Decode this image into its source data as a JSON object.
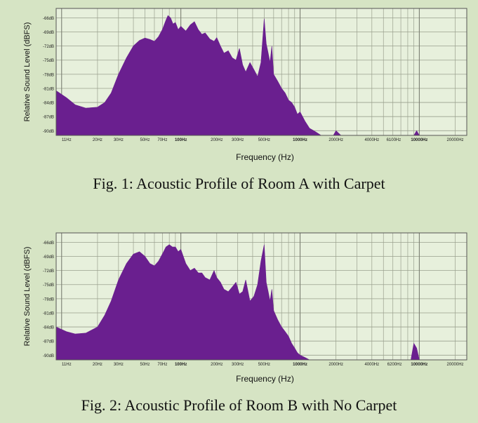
{
  "colors": {
    "background": "#d6e4c4",
    "plot_area": "#e7f0dc",
    "fill": "#6a1f8f",
    "grid": "#9aa08e",
    "gridline_strong": "#7b7f72"
  },
  "figures": [
    {
      "caption": "Fig. 1: Acoustic Profile of Room A with Carpet"
    },
    {
      "caption": "Fig. 2: Acoustic Profile of Room B with No Carpet"
    }
  ],
  "chart_data": [
    {
      "type": "area",
      "xlabel": "Frequency (Hz)",
      "ylabel": "Relative Sound Level (dBFS)",
      "xscale": "log",
      "xlim": [
        9,
        25000
      ],
      "ylim": [
        -91,
        -64
      ],
      "grid": true,
      "y_ticks": [
        {
          "value": -66,
          "label": "-66dB"
        },
        {
          "value": -69,
          "label": "-69dB"
        },
        {
          "value": -72,
          "label": "-72dB"
        },
        {
          "value": -75,
          "label": "-75dB"
        },
        {
          "value": -78,
          "label": "-78dB"
        },
        {
          "value": -81,
          "label": "-81dB"
        },
        {
          "value": -84,
          "label": "-84dB"
        },
        {
          "value": -87,
          "label": "-87dB"
        },
        {
          "value": -90,
          "label": "-90dB"
        }
      ],
      "x_ticks": [
        {
          "value": 11,
          "label": "11Hz"
        },
        {
          "value": 20,
          "label": "20Hz"
        },
        {
          "value": 30,
          "label": "30Hz"
        },
        {
          "value": 50,
          "label": "50Hz"
        },
        {
          "value": 70,
          "label": "70Hz"
        },
        {
          "value": 100,
          "label": "100Hz"
        },
        {
          "value": 200,
          "label": "200Hz"
        },
        {
          "value": 300,
          "label": "300Hz"
        },
        {
          "value": 500,
          "label": "500Hz"
        },
        {
          "value": 1000,
          "label": "1000Hz"
        },
        {
          "value": 2000,
          "label": "2000Hz"
        },
        {
          "value": 4000,
          "label": "4000Hz"
        },
        {
          "value": 6100,
          "label": "6100Hz"
        },
        {
          "value": 10000,
          "label": "10000Hz"
        },
        {
          "value": 20000,
          "label": "20000Hz"
        }
      ],
      "x": [
        9,
        11,
        13,
        16,
        20,
        23,
        26,
        30,
        35,
        40,
        45,
        50,
        55,
        60,
        65,
        70,
        75,
        78,
        82,
        86,
        90,
        95,
        100,
        110,
        120,
        130,
        140,
        150,
        160,
        175,
        190,
        200,
        215,
        230,
        250,
        270,
        290,
        310,
        330,
        350,
        380,
        410,
        440,
        470,
        500,
        520,
        540,
        560,
        580,
        600,
        650,
        700,
        750,
        800,
        850,
        900,
        950,
        1000,
        1100,
        1200,
        1300,
        1400,
        1500,
        1700,
        1900,
        2000,
        2200,
        2500,
        3000,
        4000,
        6000,
        9000,
        9500,
        10000,
        10500,
        15000,
        20000,
        25000
      ],
      "y": [
        -81.5,
        -83,
        -84.5,
        -85.2,
        -85.0,
        -84.0,
        -82.0,
        -78.0,
        -74.5,
        -72.0,
        -70.8,
        -70.3,
        -70.6,
        -71.0,
        -70.0,
        -68.5,
        -66.5,
        -65.5,
        -66.0,
        -67.3,
        -67.0,
        -68.5,
        -67.8,
        -68.8,
        -67.5,
        -66.8,
        -68.5,
        -69.5,
        -69.2,
        -70.5,
        -71.0,
        -70.2,
        -72.0,
        -73.5,
        -73.0,
        -74.5,
        -75.0,
        -72.5,
        -76.0,
        -77.5,
        -75.5,
        -77.0,
        -78.5,
        -75.5,
        -66.2,
        -71.5,
        -73.5,
        -75.5,
        -72.0,
        -78.0,
        -79.5,
        -81.0,
        -82.0,
        -83.5,
        -84.0,
        -85.0,
        -86.5,
        -86.0,
        -88.0,
        -89.5,
        -90.0,
        -90.5,
        -91.0,
        -91.0,
        -91.0,
        -90.0,
        -91.0,
        -91.0,
        -91.0,
        -91.0,
        -91.0,
        -91.0,
        -90.0,
        -91.0,
        -91.0,
        -91.0,
        -91.0,
        -91.0
      ]
    },
    {
      "type": "area",
      "xlabel": "Frequency (Hz)",
      "ylabel": "Relative Sound Level (dBFS)",
      "xscale": "log",
      "xlim": [
        9,
        25000
      ],
      "ylim": [
        -91,
        -64
      ],
      "grid": true,
      "y_ticks": [
        {
          "value": -66,
          "label": "-66dB"
        },
        {
          "value": -69,
          "label": "-69dB"
        },
        {
          "value": -72,
          "label": "-72dB"
        },
        {
          "value": -75,
          "label": "-75dB"
        },
        {
          "value": -78,
          "label": "-78dB"
        },
        {
          "value": -81,
          "label": "-81dB"
        },
        {
          "value": -84,
          "label": "-84dB"
        },
        {
          "value": -87,
          "label": "-87dB"
        },
        {
          "value": -90,
          "label": "-90dB"
        }
      ],
      "x_ticks": [
        {
          "value": 11,
          "label": "11Hz"
        },
        {
          "value": 20,
          "label": "20Hz"
        },
        {
          "value": 30,
          "label": "30Hz"
        },
        {
          "value": 50,
          "label": "50Hz"
        },
        {
          "value": 70,
          "label": "70Hz"
        },
        {
          "value": 100,
          "label": "100Hz"
        },
        {
          "value": 200,
          "label": "200Hz"
        },
        {
          "value": 300,
          "label": "300Hz"
        },
        {
          "value": 500,
          "label": "500Hz"
        },
        {
          "value": 1000,
          "label": "1000Hz"
        },
        {
          "value": 2000,
          "label": "2000Hz"
        },
        {
          "value": 4000,
          "label": "4000Hz"
        },
        {
          "value": 6200,
          "label": "6200Hz"
        },
        {
          "value": 10000,
          "label": "10000Hz"
        },
        {
          "value": 20000,
          "label": "20000Hz"
        }
      ],
      "x": [
        9,
        11,
        13,
        16,
        20,
        23,
        26,
        30,
        35,
        40,
        45,
        50,
        55,
        60,
        65,
        70,
        75,
        80,
        85,
        90,
        95,
        100,
        110,
        120,
        130,
        140,
        150,
        160,
        175,
        190,
        200,
        215,
        230,
        250,
        270,
        290,
        310,
        330,
        350,
        380,
        410,
        440,
        470,
        500,
        520,
        540,
        560,
        580,
        600,
        650,
        700,
        750,
        800,
        850,
        900,
        950,
        1000,
        1100,
        1200,
        1300,
        1500,
        2000,
        3000,
        4000,
        6000,
        8500,
        9000,
        9500,
        10000,
        12000,
        15000,
        20000,
        25000
      ],
      "y": [
        -84.0,
        -85.0,
        -85.5,
        -85.3,
        -84.0,
        -81.5,
        -78.5,
        -74.0,
        -70.5,
        -68.5,
        -68.0,
        -69.0,
        -70.5,
        -71.0,
        -70.0,
        -68.5,
        -67.0,
        -66.5,
        -67.0,
        -67.0,
        -68.0,
        -67.5,
        -70.5,
        -72.0,
        -71.5,
        -72.5,
        -72.5,
        -73.5,
        -74.0,
        -72.0,
        -73.5,
        -74.5,
        -76.0,
        -76.5,
        -75.5,
        -74.5,
        -77.0,
        -76.5,
        -74.0,
        -78.5,
        -77.5,
        -75.0,
        -70.0,
        -66.5,
        -74.5,
        -76.5,
        -78.5,
        -76.0,
        -80.5,
        -82.5,
        -84.0,
        -85.0,
        -86.0,
        -87.5,
        -88.5,
        -89.5,
        -90.0,
        -90.5,
        -91.0,
        -91.0,
        -91.0,
        -91.0,
        -91.0,
        -91.0,
        -91.0,
        -91.0,
        -87.5,
        -88.5,
        -91.0,
        -91.0,
        -91.0,
        -91.0,
        -91.0
      ]
    }
  ]
}
